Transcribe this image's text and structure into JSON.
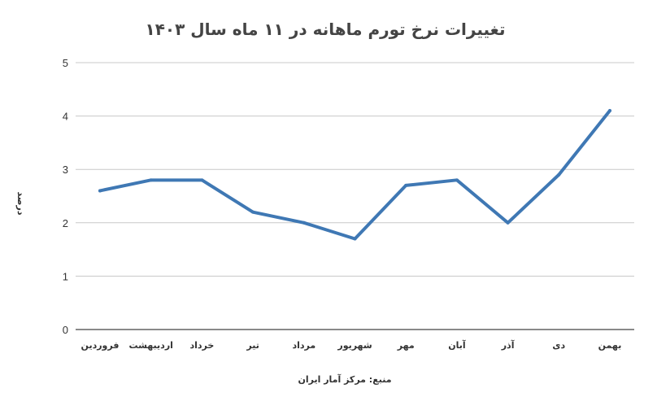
{
  "chart_data": {
    "type": "line",
    "title": "تغییرات نرخ تورم ماهانه در ۱۱ ماه سال ۱۴۰۳",
    "ylabel": "درصد",
    "xlabel": "منبع: مرکز آمار ایران",
    "categories": [
      "فروردین",
      "اردیبهشت",
      "خرداد",
      "تیر",
      "مرداد",
      "شهریور",
      "مهر",
      "آبان",
      "آذر",
      "دی",
      "بهمن"
    ],
    "series": [
      {
        "values": [
          2.6,
          2.8,
          2.8,
          2.2,
          2.0,
          1.7,
          2.7,
          2.8,
          2.0,
          2.9,
          4.1
        ]
      }
    ],
    "ylim": [
      0,
      5
    ],
    "yticks": [
      "0",
      "1",
      "2",
      "3",
      "4",
      "5"
    ],
    "grid": true,
    "line_color": "#3f78b4",
    "grid_color": "#c8c8c8"
  }
}
